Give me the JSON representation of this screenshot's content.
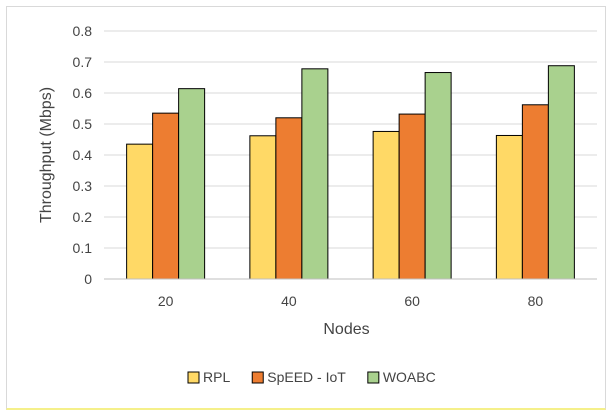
{
  "chart_data": {
    "type": "bar",
    "title": "",
    "xlabel": "Nodes",
    "ylabel": "Throughput (Mbps)",
    "categories": [
      "20",
      "40",
      "60",
      "80"
    ],
    "ylim": [
      0,
      0.8
    ],
    "yticks": [
      "0",
      "0.1",
      "0.2",
      "0.3",
      "0.4",
      "0.5",
      "0.6",
      "0.7",
      "0.8"
    ],
    "grid": true,
    "legend_position": "bottom",
    "series": [
      {
        "name": "RPL",
        "color": "#ffd966",
        "values": [
          0.435,
          0.462,
          0.476,
          0.463
        ]
      },
      {
        "name": "SpEED - IoT",
        "color": "#ed7d31",
        "values": [
          0.535,
          0.52,
          0.532,
          0.562
        ]
      },
      {
        "name": "WOABC",
        "color": "#a9d18e",
        "values": [
          0.614,
          0.678,
          0.666,
          0.688
        ]
      }
    ]
  }
}
